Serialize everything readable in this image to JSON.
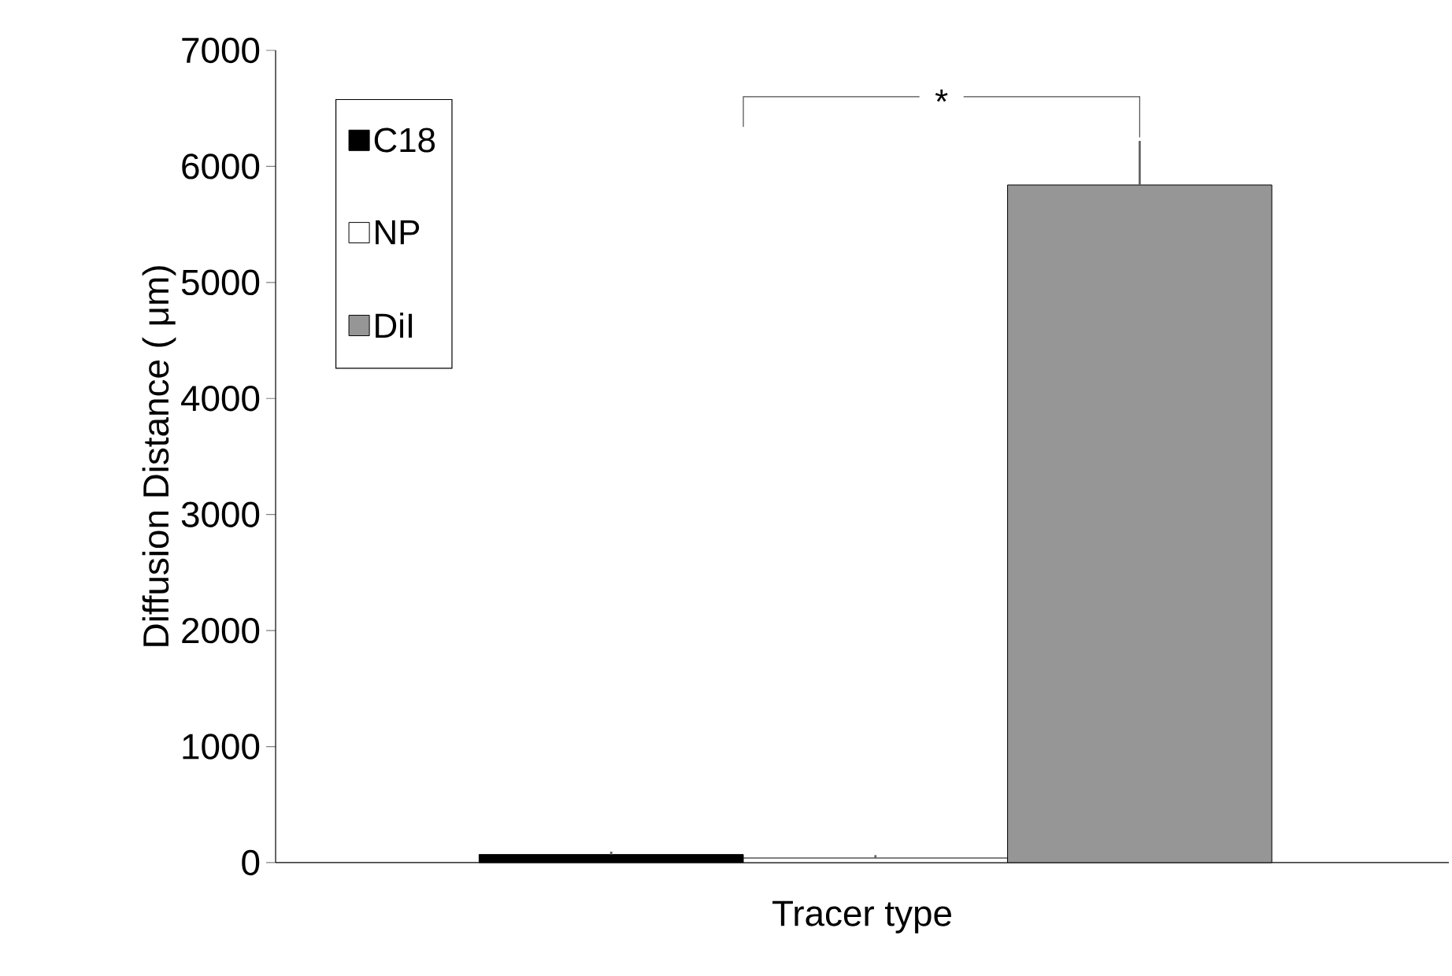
{
  "chart_data": {
    "type": "bar",
    "xlabel": "Tracer type",
    "ylabel": "Diffusion Distance ( μm)",
    "categories": [
      null
    ],
    "series": [
      {
        "name": "C18",
        "color": "#000000",
        "values": [
          70
        ],
        "errors": [
          [
            70,
            95
          ]
        ]
      },
      {
        "name": "NP",
        "color": "#ffffff",
        "values": [
          40
        ],
        "errors": [
          [
            40,
            65
          ]
        ]
      },
      {
        "name": "DiI",
        "color": "#969696",
        "values": [
          5840
        ],
        "errors": [
          [
            5840,
            6220
          ]
        ]
      }
    ],
    "ylim": [
      0,
      7000
    ],
    "yticks": [
      0,
      1000,
      2000,
      3000,
      4000,
      5000,
      6000,
      7000
    ],
    "grid": false,
    "legend": "top left",
    "annotations": [
      "*"
    ]
  }
}
